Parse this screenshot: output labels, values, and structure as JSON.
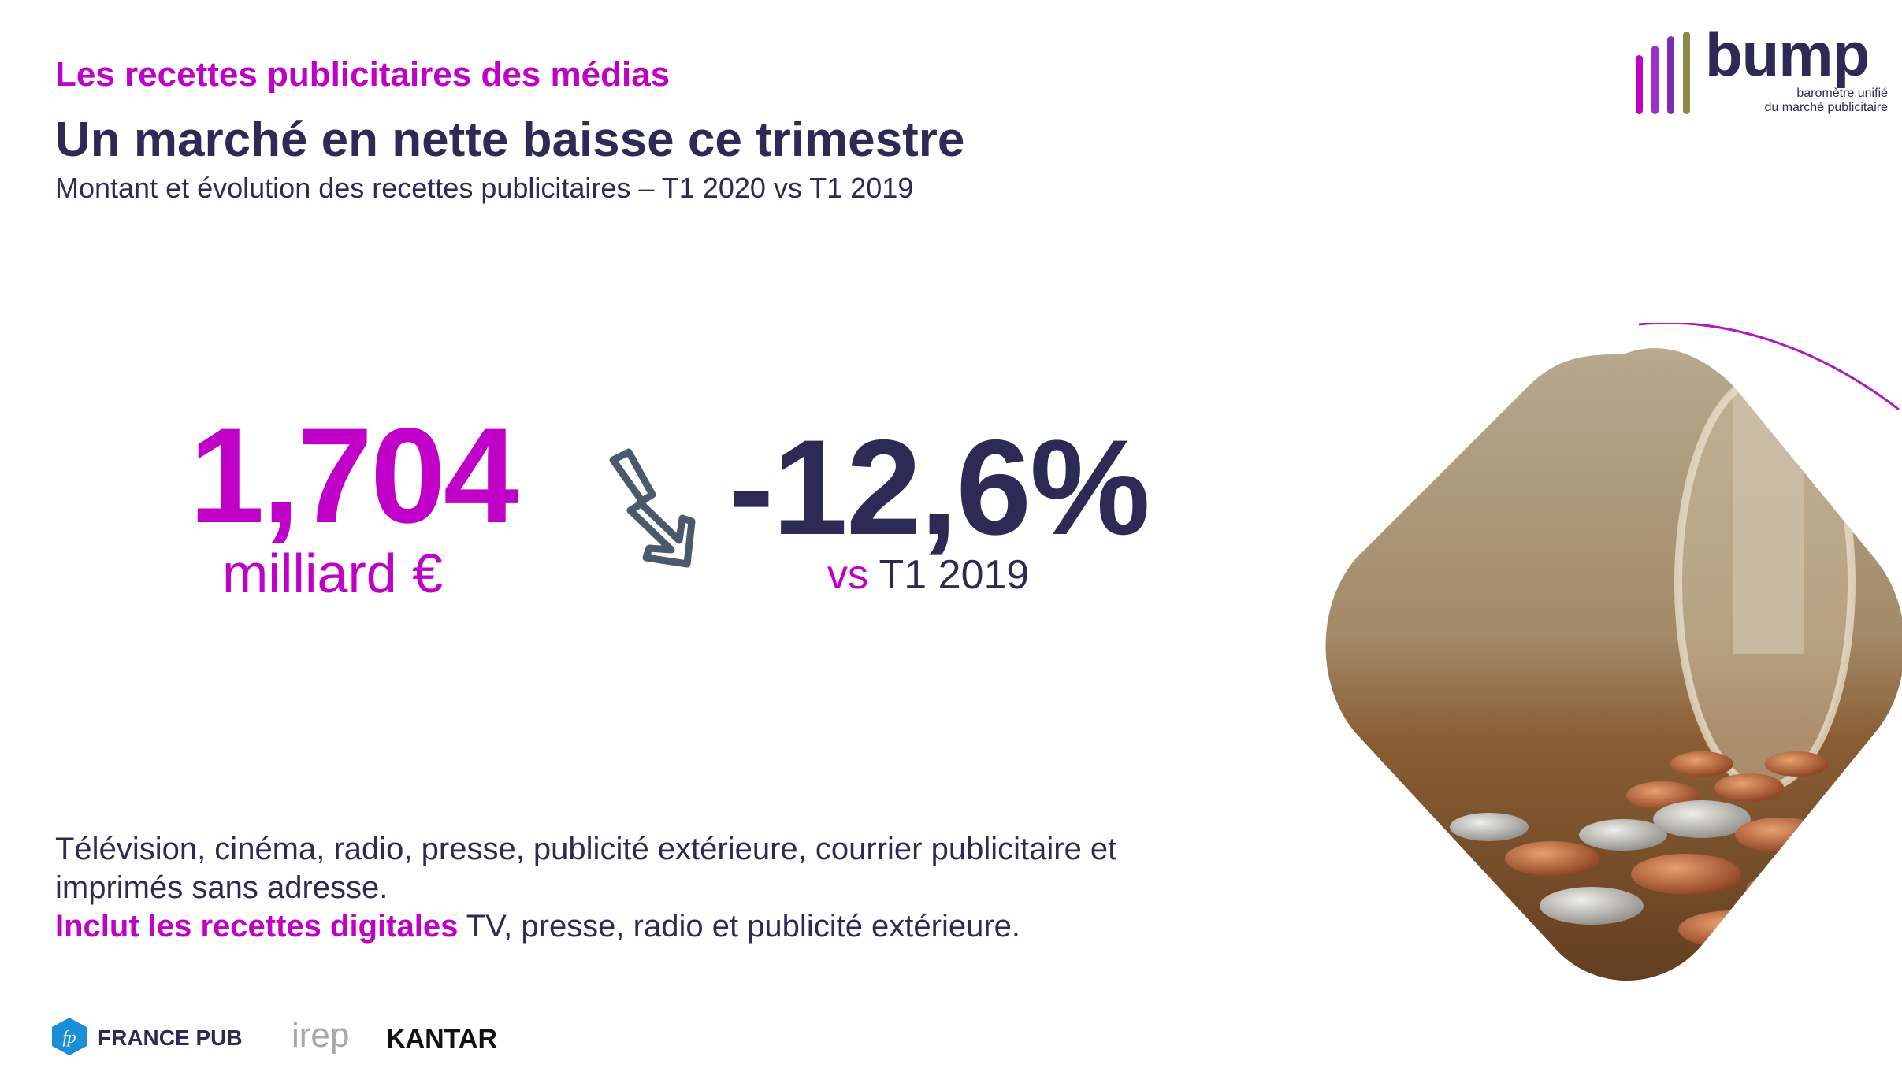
{
  "header": {
    "kicker": "Les recettes publicitaires des médias",
    "title": "Un marché en nette baisse ce trimestre",
    "subtitle": "Montant et évolution des recettes publicitaires  – T1 2020 vs T1 2019"
  },
  "logo": {
    "name": "bump",
    "tagline_line1": "baromètre unifié",
    "tagline_line2": "du marché publicitaire",
    "bar_colors": [
      "#c000c8",
      "#9b30d0",
      "#7a2fb0",
      "#8a8a4a"
    ]
  },
  "kpi": {
    "amount": "1,704",
    "amount_unit": "milliard €",
    "change": "-12,6%",
    "change_vs": "vs",
    "change_period": "T1 2019",
    "arrow_icon": "down-trend-arrow-icon"
  },
  "description": {
    "line1": "Télévision, cinéma, radio, presse, publicité extérieure, courrier publicitaire et imprimés sans adresse.",
    "highlight": "Inclut les recettes digitales",
    "line2_rest": " TV, presse, radio et publicité extérieure."
  },
  "partners": {
    "france_pub_badge": "fp",
    "france_pub": "FRANCE PUB",
    "irep": "irep",
    "kantar": "KANTAR"
  },
  "colors": {
    "accent": "#c000c8",
    "primary": "#2d2a56"
  }
}
